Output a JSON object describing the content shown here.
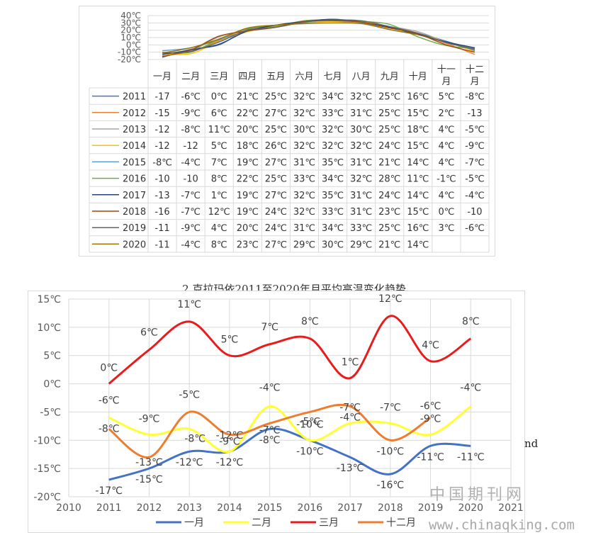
{
  "chart_data": [
    {
      "type": "line",
      "categories": [
        "一月",
        "二月",
        "三月",
        "四月",
        "五月",
        "六月",
        "七月",
        "八月",
        "九月",
        "十月",
        "十一月",
        "十二月"
      ],
      "y_ticks": [
        "40℃",
        "30℃",
        "20℃",
        "10℃",
        "0℃",
        "-10℃",
        "-20℃"
      ],
      "ylim": [
        -20,
        40
      ],
      "grid": true,
      "series": [
        {
          "name": "2011",
          "color": "#4472c4",
          "values": [
            -17,
            -6,
            0,
            21,
            25,
            32,
            34,
            32,
            25,
            16,
            5,
            -8
          ],
          "cells": [
            "-17",
            "-6℃",
            "0℃",
            "21℃",
            "25℃",
            "32℃",
            "34℃",
            "32℃",
            "25℃",
            "16℃",
            "5℃",
            "-8℃"
          ]
        },
        {
          "name": "2012",
          "color": "#ed7d31",
          "values": [
            -15,
            -9,
            6,
            22,
            27,
            32,
            33,
            31,
            25,
            15,
            2,
            -13
          ],
          "cells": [
            "-15",
            "-9℃",
            "6℃",
            "22℃",
            "27℃",
            "32℃",
            "33℃",
            "31℃",
            "25℃",
            "15℃",
            "2℃",
            "-13"
          ]
        },
        {
          "name": "2013",
          "color": "#a5a5a5",
          "values": [
            -12,
            -8,
            11,
            20,
            25,
            30,
            32,
            30,
            25,
            18,
            4,
            -5
          ],
          "cells": [
            "-12",
            "-8℃",
            "11℃",
            "20℃",
            "25℃",
            "30℃",
            "32℃",
            "30℃",
            "25℃",
            "18℃",
            "4℃",
            "-5℃"
          ]
        },
        {
          "name": "2014",
          "color": "#ffc000",
          "values": [
            -12,
            -12,
            5,
            18,
            26,
            32,
            32,
            32,
            24,
            15,
            4,
            -9
          ],
          "cells": [
            "-12",
            "-12",
            "5℃",
            "18℃",
            "26℃",
            "32℃",
            "32℃",
            "32℃",
            "24℃",
            "15℃",
            "4℃",
            "-9℃"
          ]
        },
        {
          "name": "2015",
          "color": "#5b9bd5",
          "values": [
            -8,
            -4,
            7,
            19,
            27,
            31,
            35,
            31,
            21,
            14,
            4,
            -7
          ],
          "cells": [
            "-8℃",
            "-4℃",
            "7℃",
            "19℃",
            "27℃",
            "31℃",
            "35℃",
            "31℃",
            "21℃",
            "14℃",
            "4℃",
            "-7℃"
          ]
        },
        {
          "name": "2016",
          "color": "#70ad47",
          "values": [
            -10,
            -10,
            8,
            22,
            25,
            33,
            34,
            32,
            28,
            11,
            -1,
            -5
          ],
          "cells": [
            "-10",
            "-10",
            "8℃",
            "22℃",
            "25℃",
            "33℃",
            "34℃",
            "32℃",
            "28℃",
            "11℃",
            "-1℃",
            "-5℃"
          ]
        },
        {
          "name": "2017",
          "color": "#264478",
          "values": [
            -13,
            -7,
            1,
            19,
            27,
            32,
            35,
            31,
            24,
            14,
            4,
            -4
          ],
          "cells": [
            "-13",
            "-7℃",
            "1℃",
            "19℃",
            "27℃",
            "32℃",
            "35℃",
            "31℃",
            "24℃",
            "14℃",
            "4℃",
            "-4℃"
          ]
        },
        {
          "name": "2018",
          "color": "#9e480e",
          "values": [
            -16,
            -7,
            12,
            19,
            24,
            32,
            33,
            31,
            23,
            15,
            0,
            -10
          ],
          "cells": [
            "-16",
            "-7℃",
            "12℃",
            "19℃",
            "24℃",
            "32℃",
            "33℃",
            "31℃",
            "23℃",
            "15℃",
            "0℃",
            "-10"
          ]
        },
        {
          "name": "2019",
          "color": "#636363",
          "values": [
            -11,
            -9,
            4,
            20,
            24,
            31,
            34,
            33,
            25,
            16,
            3,
            -6
          ],
          "cells": [
            "-11",
            "-9℃",
            "4℃",
            "20℃",
            "24℃",
            "31℃",
            "34℃",
            "33℃",
            "25℃",
            "16℃",
            "3℃",
            "-6℃"
          ]
        },
        {
          "name": "2020",
          "color": "#997300",
          "values": [
            -11,
            -4,
            8,
            23,
            27,
            29,
            30,
            29,
            21,
            14,
            null,
            null
          ],
          "cells": [
            "-11",
            "-4℃",
            "8℃",
            "23℃",
            "27℃",
            "29℃",
            "30℃",
            "29℃",
            "21℃",
            "14℃",
            "",
            ""
          ]
        }
      ]
    },
    {
      "type": "line",
      "title": "2.克拉玛依2011至2020年月平均高温变化趋势",
      "x": [
        2011,
        2012,
        2013,
        2014,
        2015,
        2016,
        2017,
        2018,
        2019,
        2020
      ],
      "x_ticks": [
        "2010",
        "2011",
        "2012",
        "2013",
        "2014",
        "2015",
        "2016",
        "2017",
        "2018",
        "2019",
        "2020",
        "2021"
      ],
      "xlim": [
        2010,
        2021
      ],
      "y_ticks": [
        "15℃",
        "10℃",
        "5℃",
        "0℃",
        "-5℃",
        "-10℃",
        "-15℃",
        "-20℃"
      ],
      "ylim": [
        -20,
        15
      ],
      "grid": true,
      "legend_position": "bottom",
      "series": [
        {
          "name": "一月",
          "color": "#4472c4",
          "values": [
            -17,
            -15,
            -12,
            -12,
            -8,
            -10,
            -13,
            -16,
            -11,
            -11
          ],
          "labels": [
            "-17℃",
            "-15℃",
            "-12℃",
            "-12℃",
            "-8℃",
            "-10℃",
            "-13℃",
            "-16℃",
            "-11℃",
            "-11℃"
          ]
        },
        {
          "name": "二月",
          "color": "#ffff33",
          "values": [
            -6,
            -9,
            -8,
            -12,
            -4,
            -10,
            -7,
            -7,
            -9,
            -4
          ],
          "labels": [
            "-6℃",
            "-9℃",
            "-8℃",
            "-12℃",
            "-4℃",
            "-10℃",
            "-7℃",
            "-7℃",
            "-9℃",
            "-4℃"
          ]
        },
        {
          "name": "三月",
          "color": "#e81c1c",
          "values": [
            0,
            6,
            11,
            5,
            7,
            8,
            1,
            12,
            4,
            8
          ],
          "labels": [
            "0℃",
            "6℃",
            "11℃",
            "5℃",
            "7℃",
            "8℃",
            "1℃",
            "12℃",
            "4℃",
            "8℃"
          ]
        },
        {
          "name": "十二月",
          "color": "#ed7d31",
          "values": [
            -8,
            -13,
            -5,
            -9,
            -7,
            -5,
            -4,
            -10,
            -6,
            null
          ],
          "labels": [
            "-8℃",
            "-13℃",
            "-5℃",
            "-9℃",
            "-7℃",
            "-5℃",
            "-4℃",
            "-10℃",
            "-6℃",
            ""
          ]
        }
      ]
    }
  ],
  "stray_text": "nd",
  "watermark": {
    "cn": "中国期刊网",
    "url": "www.chinaqking.com"
  }
}
